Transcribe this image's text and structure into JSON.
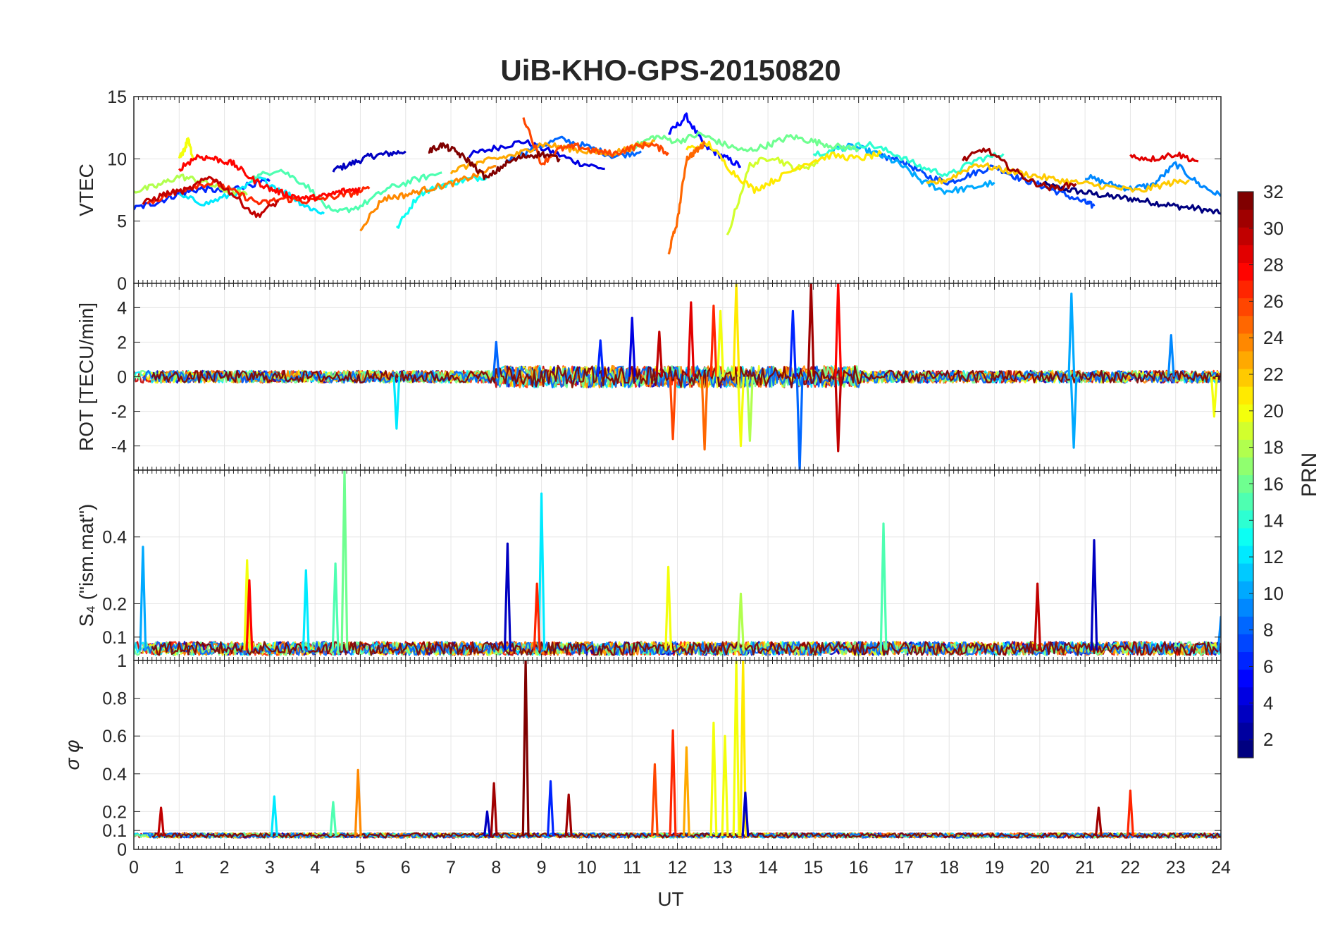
{
  "chart_data": {
    "type": "line",
    "title": "UiB-KHO-GPS-20150820",
    "xlabel": "UT",
    "xlim": [
      0,
      24
    ],
    "xticks": [
      "0",
      "1",
      "2",
      "3",
      "4",
      "5",
      "6",
      "7",
      "8",
      "9",
      "10",
      "11",
      "12",
      "13",
      "14",
      "15",
      "16",
      "17",
      "18",
      "19",
      "20",
      "21",
      "22",
      "23",
      "24"
    ],
    "grid": true,
    "colorbar": {
      "label": "PRN",
      "range": [
        1,
        32
      ],
      "ticks": [
        "2",
        "4",
        "6",
        "8",
        "10",
        "12",
        "14",
        "16",
        "18",
        "20",
        "22",
        "24",
        "26",
        "28",
        "30",
        "32"
      ],
      "colormap": "jet",
      "colors": [
        "#000080",
        "#0000c0",
        "#0000ff",
        "#0040ff",
        "#0080ff",
        "#00c0ff",
        "#00ffff",
        "#40ffc0",
        "#80ff80",
        "#c0ff40",
        "#ffff00",
        "#ffc000",
        "#ff8000",
        "#ff4000",
        "#ff0000",
        "#c00000",
        "#800000"
      ]
    },
    "panels": [
      {
        "id": "vtec",
        "ylabel": "VTEC",
        "ylim": [
          0,
          15
        ],
        "yticks": [
          "0",
          "5",
          "10",
          "15"
        ],
        "yvals": [
          0,
          5,
          10,
          15
        ],
        "series": [
          {
            "prn": 1,
            "x": [
              20.0,
              20.5,
              21.0,
              21.5,
              22.0,
              22.5,
              23.0,
              23.5,
              24.0
            ],
            "y": [
              8.0,
              7.6,
              7.3,
              7.0,
              6.8,
              6.5,
              6.2,
              6.0,
              5.6
            ]
          },
          {
            "prn": 3,
            "x": [
              4.4,
              4.8,
              5.2,
              5.6,
              6.0
            ],
            "y": [
              9.1,
              9.6,
              10.2,
              10.4,
              10.6
            ]
          },
          {
            "prn": 4,
            "x": [
              7.4,
              8.0,
              8.6,
              9.2,
              9.8,
              10.4
            ],
            "y": [
              10.3,
              10.9,
              11.4,
              10.6,
              9.7,
              9.2
            ]
          },
          {
            "prn": 5,
            "x": [
              11.8,
              12.2,
              12.6,
              13.0,
              13.4
            ],
            "y": [
              12.0,
              13.4,
              11.0,
              10.2,
              9.4
            ]
          },
          {
            "prn": 6,
            "x": [
              0.0,
              0.5,
              1.0,
              1.5,
              2.0,
              2.5,
              3.0
            ],
            "y": [
              6.0,
              6.5,
              7.2,
              7.6,
              7.4,
              7.9,
              8.2
            ]
          },
          {
            "prn": 7,
            "x": [
              16.5,
              17.0,
              17.5,
              18.0,
              18.5,
              19.0,
              19.5,
              20.0,
              20.5,
              21.0,
              21.2
            ],
            "y": [
              10.2,
              9.8,
              8.6,
              8.1,
              8.8,
              9.4,
              8.5,
              7.9,
              7.2,
              6.5,
              6.2
            ]
          },
          {
            "prn": 8,
            "x": [
              8.2,
              8.8,
              9.4,
              10.0,
              10.6,
              11.2
            ],
            "y": [
              9.8,
              10.8,
              11.6,
              11.0,
              10.2,
              10.6
            ]
          },
          {
            "prn": 9,
            "x": [
              21.0,
              21.5,
              22.0,
              22.5,
              23.0,
              23.5,
              24.0
            ],
            "y": [
              8.6,
              8.0,
              7.6,
              7.9,
              9.6,
              8.0,
              7.0
            ]
          },
          {
            "prn": 10,
            "x": [
              15.4,
              15.9,
              16.4,
              16.9,
              17.4,
              17.9,
              18.4,
              19.0
            ],
            "y": [
              10.8,
              11.0,
              10.4,
              9.6,
              8.2,
              7.4,
              7.6,
              8.1
            ]
          },
          {
            "prn": 12,
            "x": [
              1.0,
              1.6,
              2.2,
              2.8,
              3.4,
              3.8,
              4.2
            ],
            "y": [
              7.0,
              6.4,
              7.2,
              8.4,
              7.2,
              6.2,
              5.6
            ]
          },
          {
            "prn": 13,
            "x": [
              5.8,
              6.3,
              6.8,
              7.3,
              7.8
            ],
            "y": [
              4.4,
              7.2,
              7.9,
              8.3,
              8.6
            ]
          },
          {
            "prn": 14,
            "x": [
              15.0,
              15.6,
              16.2,
              16.8,
              17.4,
              18.0,
              18.6,
              19.2
            ],
            "y": [
              10.4,
              10.8,
              11.2,
              10.4,
              9.3,
              8.7,
              9.9,
              10.4
            ]
          },
          {
            "prn": 15,
            "x": [
              2.6,
              3.2,
              3.8,
              4.4,
              5.0,
              5.6,
              6.2,
              6.8
            ],
            "y": [
              8.4,
              9.2,
              7.9,
              5.6,
              6.2,
              7.6,
              8.3,
              8.9
            ]
          },
          {
            "prn": 16,
            "x": [
              11.0,
              11.5,
              12.0,
              12.5,
              13.0,
              13.5,
              14.0,
              14.5,
              15.0,
              15.5,
              16.0
            ],
            "y": [
              10.9,
              11.8,
              11.4,
              12.0,
              11.2,
              10.6,
              11.1,
              11.8,
              11.4,
              11.0,
              10.8
            ]
          },
          {
            "prn": 18,
            "x": [
              0.0,
              0.5,
              1.0,
              1.5,
              2.0,
              2.5
            ],
            "y": [
              7.4,
              7.8,
              8.6,
              8.2,
              7.5,
              7.1
            ]
          },
          {
            "prn": 19,
            "x": [
              13.1,
              13.6,
              14.1,
              14.6,
              15.1
            ],
            "y": [
              3.8,
              9.5,
              10.2,
              9.2,
              9.6
            ]
          },
          {
            "prn": 20,
            "x": [
              1.0,
              1.1,
              1.2,
              1.3
            ],
            "y": [
              10.2,
              10.6,
              11.6,
              10.0
            ]
          },
          {
            "prn": 21,
            "x": [
              12.2,
              12.7,
              13.2,
              13.7,
              14.2,
              14.8,
              15.4,
              16.0,
              16.5
            ],
            "y": [
              10.8,
              11.2,
              9.0,
              7.5,
              8.4,
              9.6,
              10.3,
              10.0,
              10.4
            ]
          },
          {
            "prn": 22,
            "x": [
              17.5,
              18.0,
              18.6,
              19.2,
              19.8,
              20.4,
              21.0,
              21.6,
              22.2,
              22.8,
              23.3
            ],
            "y": [
              7.9,
              8.4,
              9.6,
              9.1,
              8.7,
              8.3,
              8.0,
              7.7,
              7.4,
              8.0,
              8.3
            ]
          },
          {
            "prn": 23,
            "x": [
              7.0,
              7.5,
              8.0,
              8.5,
              9.0,
              9.5,
              10.0,
              10.5,
              11.0,
              11.5
            ],
            "y": [
              9.0,
              9.6,
              10.0,
              10.4,
              11.2,
              10.9,
              10.6,
              10.4,
              10.9,
              11.4
            ]
          },
          {
            "prn": 24,
            "x": [
              5.0,
              5.5,
              6.0,
              6.5,
              7.0,
              7.5,
              8.0
            ],
            "y": [
              4.4,
              6.8,
              7.1,
              7.6,
              8.0,
              8.6,
              9.4
            ]
          },
          {
            "prn": 25,
            "x": [
              11.8,
              12.0,
              12.2,
              12.4,
              12.6
            ],
            "y": [
              2.4,
              5.0,
              10.0,
              10.6,
              11.2
            ]
          },
          {
            "prn": 26,
            "x": [
              8.6,
              9.0,
              9.4,
              9.8,
              10.2,
              10.6,
              11.0,
              11.4,
              11.8
            ],
            "y": [
              13.4,
              9.6,
              10.8,
              11.0,
              10.6,
              10.4,
              10.9,
              11.2,
              10.5
            ]
          },
          {
            "prn": 27,
            "x": [
              0.3,
              0.8,
              1.3,
              1.8,
              2.3,
              2.8,
              3.3,
              3.8,
              4.3,
              4.8,
              5.2
            ],
            "y": [
              6.4,
              7.2,
              7.8,
              8.1,
              7.2,
              6.4,
              6.8,
              6.6,
              6.9,
              7.2,
              7.6
            ]
          },
          {
            "prn": 28,
            "x": [
              1.0,
              1.4,
              1.8,
              2.2,
              2.6,
              3.0,
              3.4,
              3.8,
              4.2,
              4.6,
              5.0
            ],
            "y": [
              9.2,
              10.2,
              10.0,
              9.6,
              8.4,
              7.6,
              7.1,
              6.8,
              7.0,
              7.4,
              7.6
            ]
          },
          {
            "prn": 29,
            "x": [
              22.0,
              22.5,
              23.0,
              23.5
            ],
            "y": [
              10.2,
              10.0,
              10.4,
              9.8
            ]
          },
          {
            "prn": 30,
            "x": [
              0.2,
              0.7,
              1.2,
              1.7,
              2.2,
              2.7,
              3.2
            ],
            "y": [
              6.4,
              7.2,
              7.5,
              8.6,
              7.1,
              5.4,
              6.6
            ]
          },
          {
            "prn": 31,
            "x": [
              18.3,
              18.8,
              19.3,
              19.8,
              20.3,
              20.8
            ],
            "y": [
              9.9,
              10.8,
              9.4,
              8.2,
              7.6,
              8.0
            ]
          },
          {
            "prn": 32,
            "x": [
              6.5,
              6.8,
              7.1,
              7.4,
              7.8,
              8.2,
              8.6,
              9.0,
              9.4
            ],
            "y": [
              10.6,
              11.1,
              10.6,
              9.8,
              8.4,
              9.6,
              10.2,
              10.4,
              10.0
            ]
          }
        ]
      },
      {
        "id": "rot",
        "ylabel": "ROT [TECU/min]",
        "ylim": [
          -5.4,
          5.4
        ],
        "yticks": [
          "-4",
          "-2",
          "0",
          "2",
          "4"
        ],
        "yvals": [
          -4,
          -2,
          0,
          2,
          4
        ],
        "baseline": 0,
        "noise": 0.35,
        "spikes": [
          {
            "prn": 12,
            "x": 5.8,
            "y": -3.0
          },
          {
            "prn": 8,
            "x": 8.0,
            "y": 2.0
          },
          {
            "prn": 6,
            "x": 10.3,
            "y": 2.1
          },
          {
            "prn": 4,
            "x": 11.0,
            "y": 3.4
          },
          {
            "prn": 30,
            "x": 11.6,
            "y": 2.6
          },
          {
            "prn": 26,
            "x": 11.9,
            "y": -3.6
          },
          {
            "prn": 29,
            "x": 12.3,
            "y": 4.3
          },
          {
            "prn": 25,
            "x": 12.6,
            "y": -4.2
          },
          {
            "prn": 27,
            "x": 12.8,
            "y": 4.1
          },
          {
            "prn": 20,
            "x": 12.95,
            "y": 3.8
          },
          {
            "prn": 21,
            "x": 13.3,
            "y": 5.4
          },
          {
            "prn": 20,
            "x": 13.4,
            "y": -4.0
          },
          {
            "prn": 18,
            "x": 13.6,
            "y": -3.7
          },
          {
            "prn": 6,
            "x": 14.55,
            "y": 3.8
          },
          {
            "prn": 8,
            "x": 14.7,
            "y": -5.4
          },
          {
            "prn": 31,
            "x": 14.95,
            "y": 5.4
          },
          {
            "prn": 28,
            "x": 15.55,
            "y": 5.4
          },
          {
            "prn": 30,
            "x": 15.55,
            "y": -4.3
          },
          {
            "prn": 10,
            "x": 20.7,
            "y": 4.8
          },
          {
            "prn": 10,
            "x": 20.75,
            "y": -4.1
          },
          {
            "prn": 9,
            "x": 22.9,
            "y": 2.4
          },
          {
            "prn": 20,
            "x": 23.85,
            "y": -2.3
          }
        ]
      },
      {
        "id": "s4",
        "ylabel": "S₄ (\"ism.mat\")",
        "ylim": [
          0.03,
          0.6
        ],
        "yticks": [
          "0.1",
          "0.2",
          "0.4"
        ],
        "yvals": [
          0.1,
          0.2,
          0.4
        ],
        "baseline": 0.06,
        "noise": 0.04,
        "spikes": [
          {
            "prn": 10,
            "x": 0.2,
            "y": 0.37
          },
          {
            "prn": 20,
            "x": 2.5,
            "y": 0.33
          },
          {
            "prn": 28,
            "x": 2.55,
            "y": 0.27
          },
          {
            "prn": 12,
            "x": 3.8,
            "y": 0.3
          },
          {
            "prn": 15,
            "x": 4.45,
            "y": 0.32
          },
          {
            "prn": 16,
            "x": 4.65,
            "y": 0.6
          },
          {
            "prn": 3,
            "x": 8.25,
            "y": 0.38
          },
          {
            "prn": 12,
            "x": 9.0,
            "y": 0.53
          },
          {
            "prn": 27,
            "x": 8.9,
            "y": 0.26
          },
          {
            "prn": 20,
            "x": 11.8,
            "y": 0.31
          },
          {
            "prn": 18,
            "x": 13.4,
            "y": 0.23
          },
          {
            "prn": 15,
            "x": 16.55,
            "y": 0.44
          },
          {
            "prn": 30,
            "x": 19.95,
            "y": 0.26
          },
          {
            "prn": 3,
            "x": 21.2,
            "y": 0.39
          },
          {
            "prn": 9,
            "x": 24.0,
            "y": 0.16
          }
        ]
      },
      {
        "id": "sigma",
        "ylabel": "σ φ",
        "ylim": [
          0,
          1
        ],
        "yticks": [
          "0",
          "0.1",
          "0.2",
          "0.4",
          "0.6",
          "0.8",
          "1"
        ],
        "yvals": [
          0,
          0.1,
          0.2,
          0.4,
          0.6,
          0.8,
          1.0
        ],
        "baseline": 0.07,
        "noise": 0.025,
        "spikes": [
          {
            "prn": 30,
            "x": 0.6,
            "y": 0.22
          },
          {
            "prn": 12,
            "x": 3.1,
            "y": 0.28
          },
          {
            "prn": 15,
            "x": 4.4,
            "y": 0.25
          },
          {
            "prn": 24,
            "x": 4.95,
            "y": 0.42
          },
          {
            "prn": 3,
            "x": 7.8,
            "y": 0.2
          },
          {
            "prn": 31,
            "x": 7.95,
            "y": 0.35
          },
          {
            "prn": 32,
            "x": 8.65,
            "y": 1.0
          },
          {
            "prn": 6,
            "x": 9.2,
            "y": 0.36
          },
          {
            "prn": 31,
            "x": 9.6,
            "y": 0.29
          },
          {
            "prn": 26,
            "x": 11.5,
            "y": 0.45
          },
          {
            "prn": 27,
            "x": 11.9,
            "y": 0.63
          },
          {
            "prn": 23,
            "x": 12.2,
            "y": 0.54
          },
          {
            "prn": 20,
            "x": 12.8,
            "y": 0.67
          },
          {
            "prn": 20,
            "x": 13.05,
            "y": 0.6
          },
          {
            "prn": 20,
            "x": 13.3,
            "y": 1.0
          },
          {
            "prn": 21,
            "x": 13.45,
            "y": 1.0
          },
          {
            "prn": 3,
            "x": 13.5,
            "y": 0.3
          },
          {
            "prn": 27,
            "x": 22.0,
            "y": 0.31
          },
          {
            "prn": 31,
            "x": 21.3,
            "y": 0.22
          }
        ]
      }
    ]
  }
}
